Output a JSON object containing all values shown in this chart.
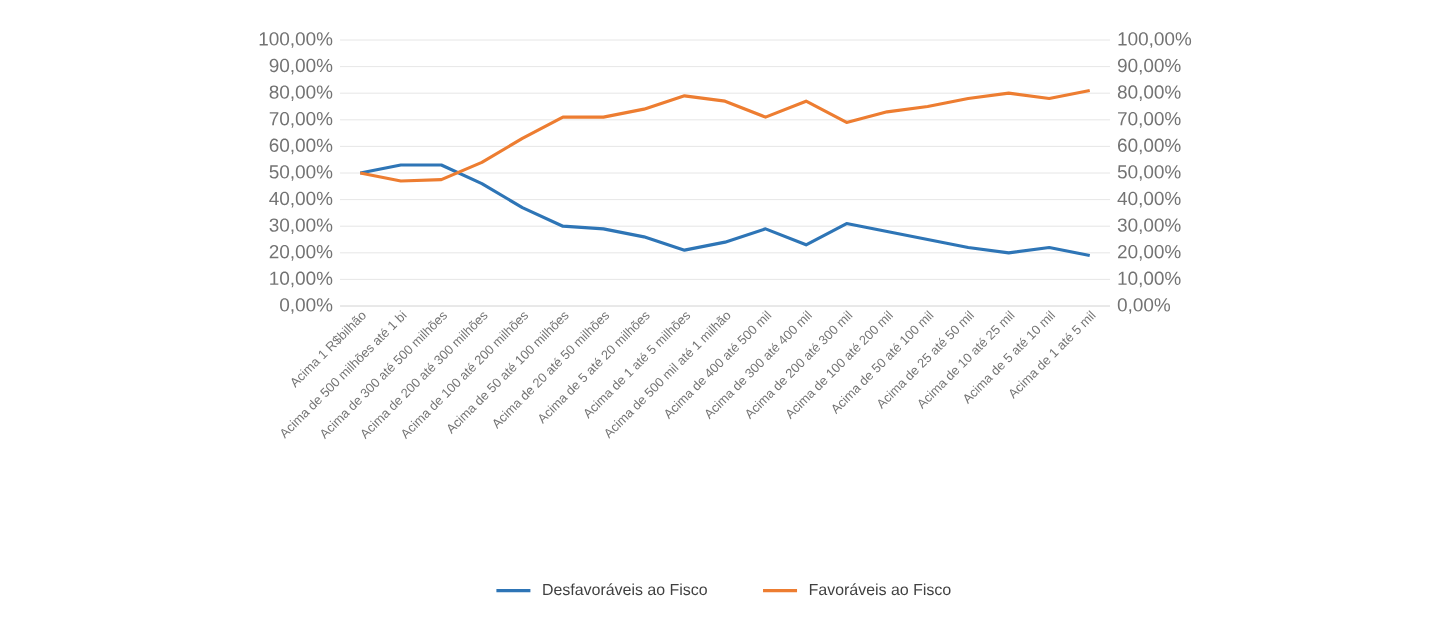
{
  "chart_data": {
    "type": "line",
    "categories": [
      "Acima 1 R$bilhão",
      "Acima de 500 milhões até 1 bi",
      "Acima de 300 até 500 milhões",
      "Acima de 200 até 300 milhões",
      "Acima de 100 até 200 milhões",
      "Acima de 50 até 100 milhões",
      "Acima de 20 até 50 milhões",
      "Acima de 5 até 20 milhões",
      "Acima de 1 até 5 milhões",
      "Acima de 500 mil até 1 milhão",
      "Acima de 400 até 500 mil",
      "Acima de 300 até 400 mil",
      "Acima de 200 até 300 mil",
      "Acima de 100 até 200 mil",
      "Acima de 50 até 100 mil",
      "Acima de 25 até 50 mil",
      "Acima de 10 até 25 mil",
      "Acima de 5 até 10 mil",
      "Acima de 1 até 5 mil"
    ],
    "series": [
      {
        "name": "Desfavoráveis ao Fisco",
        "color": "#2e75b6",
        "values": [
          50,
          53,
          53,
          46,
          37,
          30,
          29,
          26,
          21,
          24,
          29,
          23,
          31,
          28,
          25,
          22,
          20,
          22,
          19
        ]
      },
      {
        "name": "Favoráveis ao Fisco",
        "color": "#ed7d31",
        "values": [
          50,
          47,
          47.5,
          54,
          63,
          71,
          71,
          74,
          79,
          77,
          71,
          77,
          69,
          73,
          75,
          78,
          80,
          78,
          81
        ]
      }
    ],
    "ylim": [
      0,
      100
    ],
    "yticks": [
      {
        "value": 0,
        "label": "0,00%"
      },
      {
        "value": 10,
        "label": "10,00%"
      },
      {
        "value": 20,
        "label": "20,00%"
      },
      {
        "value": 30,
        "label": "30,00%"
      },
      {
        "value": 40,
        "label": "40,00%"
      },
      {
        "value": 50,
        "label": "50,00%"
      },
      {
        "value": 60,
        "label": "60,00%"
      },
      {
        "value": 70,
        "label": "70,00%"
      },
      {
        "value": 80,
        "label": "80,00%"
      },
      {
        "value": 90,
        "label": "90,00%"
      },
      {
        "value": 100,
        "label": "100,00%"
      }
    ],
    "y2lim": [
      0,
      100
    ],
    "y2ticks": [
      {
        "value": 0,
        "label": "0,00%"
      },
      {
        "value": 10,
        "label": "10,00%"
      },
      {
        "value": 20,
        "label": "20,00%"
      },
      {
        "value": 30,
        "label": "30,00%"
      },
      {
        "value": 40,
        "label": "40,00%"
      },
      {
        "value": 50,
        "label": "50,00%"
      },
      {
        "value": 60,
        "label": "60,00%"
      },
      {
        "value": 70,
        "label": "70,00%"
      },
      {
        "value": 80,
        "label": "80,00%"
      },
      {
        "value": 90,
        "label": "90,00%"
      },
      {
        "value": 100,
        "label": "100,00%"
      }
    ],
    "grid": "y",
    "legend": "bottom",
    "marker": "none",
    "line_style": "solid"
  }
}
